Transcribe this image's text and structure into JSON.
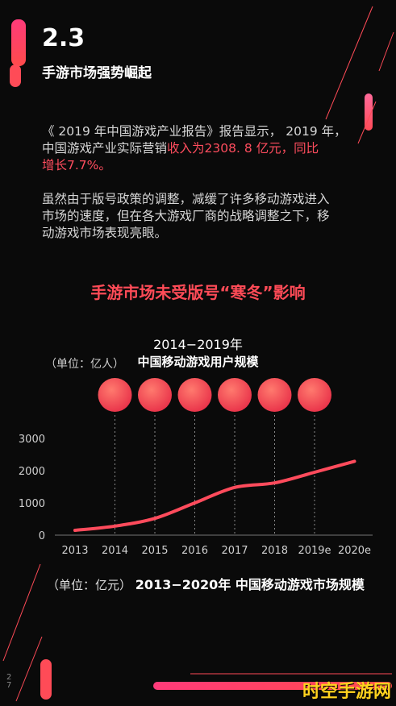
{
  "header": {
    "section_number": "2.3",
    "section_title": "手游市场强势崛起"
  },
  "intro": {
    "line1": "《 2019 年中国游戏产业报告》报告显示， 2019 年，",
    "line2_plain": "中国游戏产业实际营销",
    "line2_highlight": "收入为2308. 8 亿元，同比",
    "line3_highlight": "增长7.7%。"
  },
  "body": {
    "line1": "虽然由于版号政策的调整，减缓了许多移动游戏进入",
    "line2": "市场的速度，但在各大游戏厂商的战略调整之下，移",
    "line3": "动游戏市场表现亮眼。"
  },
  "red_heading": "手游市场未受版号“寒冬”影响",
  "users_chart": {
    "title_line1": "2014−2019年",
    "title_line2": "中国移动游戏用户规模",
    "unit": "（单位：亿人）"
  },
  "bottom_title": {
    "unit": "（单位：亿元）",
    "title": "2013−2020年 中国移动游戏市场规模"
  },
  "watermark": "时空手游网",
  "page_marker": "2\n7",
  "chart_data": {
    "type": "line",
    "x": [
      "2013",
      "2014",
      "2015",
      "2016",
      "2017",
      "2018",
      "2019e",
      "2020e"
    ],
    "series": [
      {
        "values": [
          150,
          280,
          520,
          1000,
          1480,
          1620,
          1950,
          2290
        ]
      }
    ],
    "bubbles_years": [
      "2014",
      "2015",
      "2016",
      "2017",
      "2018",
      "2019e"
    ],
    "yticks": [
      "0",
      "1000",
      "2000",
      "3000"
    ],
    "ylim": [
      0,
      3000
    ],
    "ylabel": "",
    "xlabel": "",
    "line_color": "#ff4b5c",
    "bubble_color": "#ff4b5c",
    "grid": false
  }
}
